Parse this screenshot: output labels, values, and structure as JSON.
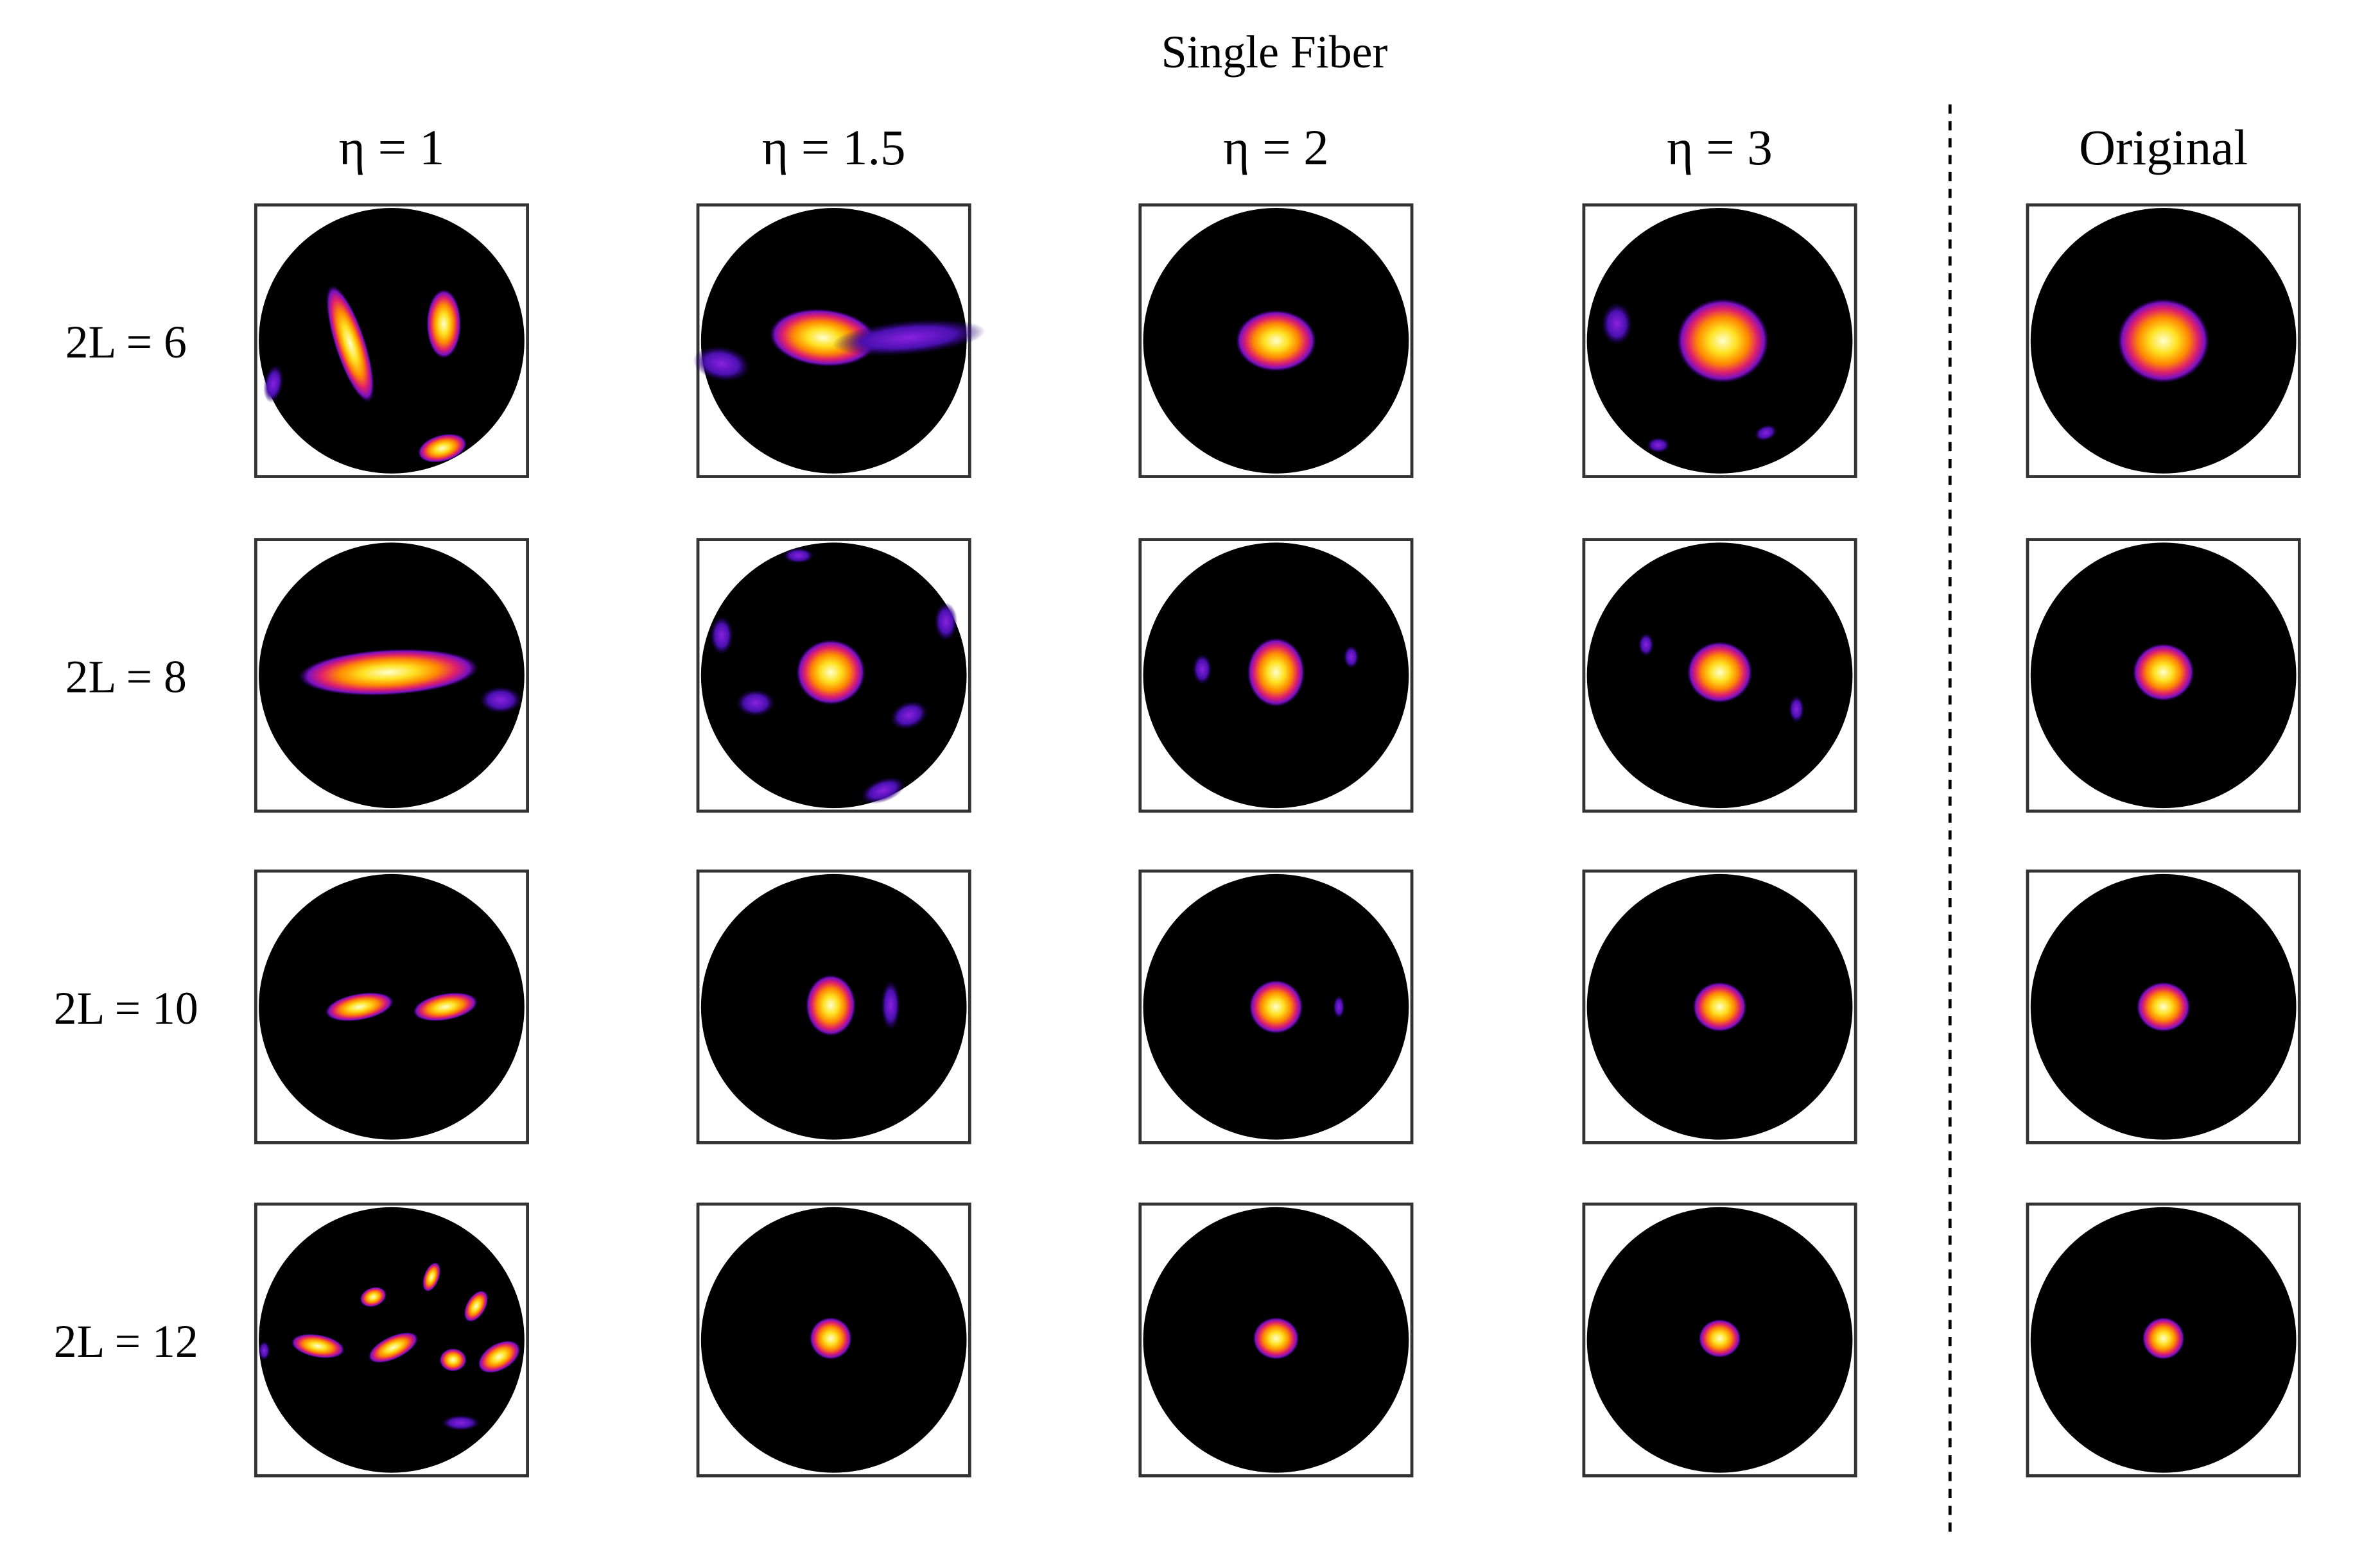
{
  "title": "Single Fiber",
  "columns": [
    "η = 1",
    "η = 1.5",
    "η = 2",
    "η = 3",
    "Original"
  ],
  "rows": [
    "2L = 6",
    "2L = 8",
    "2L = 10",
    "2L = 12"
  ]
}
